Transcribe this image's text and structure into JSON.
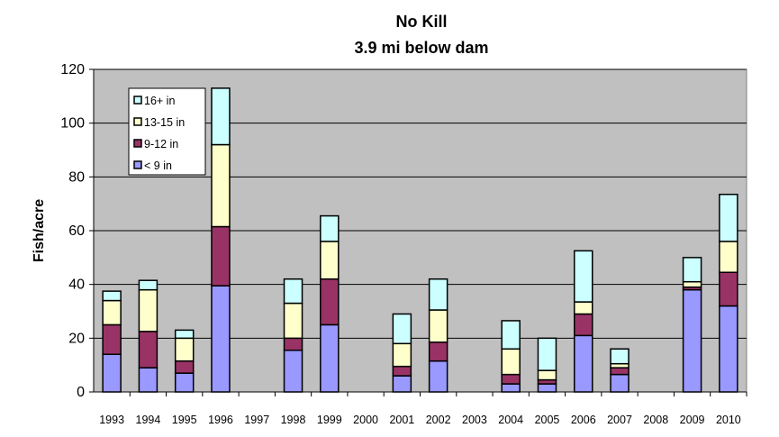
{
  "chart_data": {
    "type": "bar",
    "stacked": true,
    "title": [
      "No Kill",
      "3.9 mi below dam"
    ],
    "ylabel": "Fish/acre",
    "xlabel": "",
    "ylim": [
      0,
      120
    ],
    "yticks": [
      "0",
      "20",
      "40",
      "60",
      "80",
      "100",
      "120"
    ],
    "grid": true,
    "legend_position": "top-left",
    "categories": [
      "1993",
      "1994",
      "1995",
      "1996",
      "1997",
      "1998",
      "1999",
      "2000",
      "2001",
      "2002",
      "2003",
      "2004",
      "2005",
      "2006",
      "2007",
      "2008",
      "2009",
      "2010"
    ],
    "series": [
      {
        "name": "< 9 in",
        "color": "#9999ff",
        "values": [
          14,
          9,
          7,
          39.5,
          0,
          15.5,
          25,
          0,
          6,
          11.5,
          0,
          3,
          3,
          21,
          6.5,
          0,
          38,
          32
        ]
      },
      {
        "name": "9-12 in",
        "color": "#993366",
        "values": [
          11,
          13.5,
          4.5,
          22,
          0,
          4.5,
          17,
          0,
          3.5,
          7,
          0,
          3.5,
          1.5,
          8,
          2.5,
          0,
          1,
          12.5
        ]
      },
      {
        "name": "13-15 in",
        "color": "#ffffcc",
        "values": [
          9,
          15.5,
          8.5,
          30.5,
          0,
          13,
          14,
          0,
          8.5,
          12,
          0,
          9.5,
          3.5,
          4.5,
          1.5,
          0,
          2,
          11.5
        ]
      },
      {
        "name": "16+ in",
        "color": "#ccffff",
        "values": [
          3.5,
          3.5,
          3,
          21,
          0,
          9,
          9.5,
          0,
          11,
          11.5,
          0,
          10.5,
          12,
          19,
          5.5,
          0,
          9,
          17.5
        ]
      }
    ],
    "plot_background": "#c0c0c0"
  }
}
